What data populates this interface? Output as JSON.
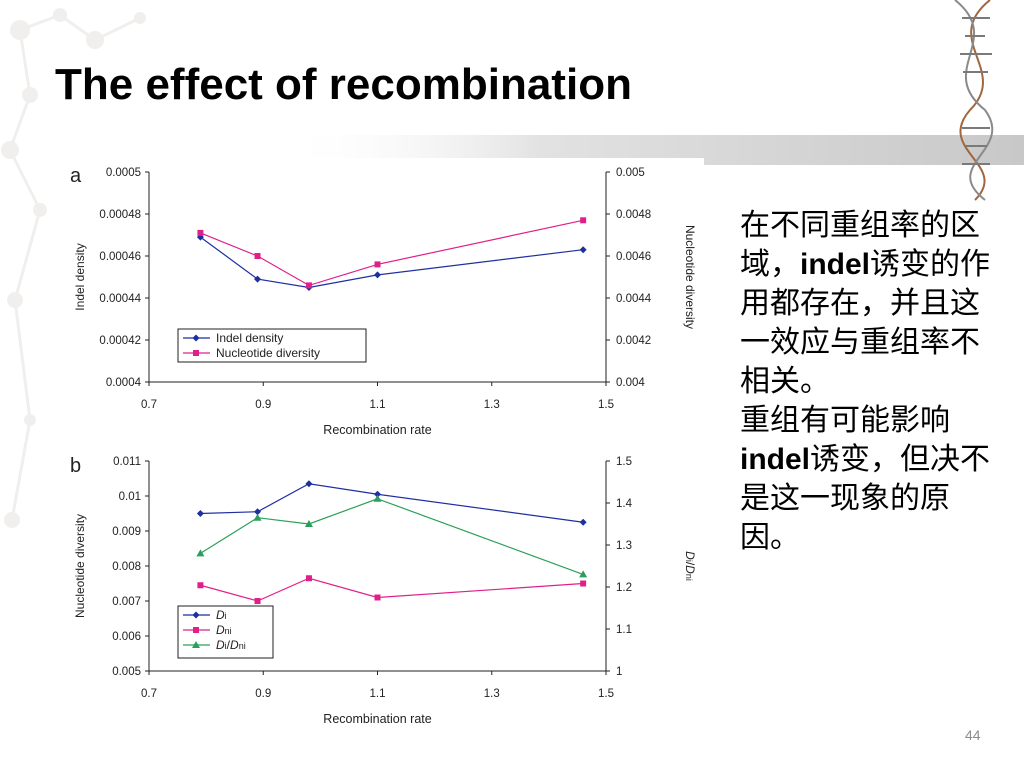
{
  "slide": {
    "title": "The effect of recombination",
    "page_number": "44",
    "caption": {
      "p1a": "在不同重组率的区域，",
      "p1b": "indel",
      "p1c": "诱变的作用都存在，并且这一效应与重组率不相关。",
      "p2a": "重组有可能影响",
      "p2b": "indel",
      "p2c": "诱变，但决不是这一现象的原因。"
    },
    "colors": {
      "series_blue": "#1f2fa0",
      "series_pink": "#e0208a",
      "series_green": "#2aa05a",
      "title_band": "#d8d8d8"
    }
  },
  "chart_data": [
    {
      "type": "line",
      "panel_label": "a",
      "xlabel": "Recombination rate",
      "ylabel_left": "Indel density",
      "ylabel_right": "Nucleotide diversity",
      "xlim": [
        0.7,
        1.5
      ],
      "xticks": [
        "0.7",
        "0.9",
        "1.1",
        "1.3",
        "1.5"
      ],
      "ylim_left": [
        0.0004,
        0.0005
      ],
      "yticks_left": [
        "0.0004",
        "0.00042",
        "0.00044",
        "0.00046",
        "0.00048",
        "0.0005"
      ],
      "ylim_right": [
        0.004,
        0.005
      ],
      "yticks_right": [
        "0.004",
        "0.0042",
        "0.0044",
        "0.0046",
        "0.0048",
        "0.005"
      ],
      "legend_position": "bottom-left",
      "series": [
        {
          "name": "Indel density",
          "axis": "left",
          "color": "#1f2fa0",
          "marker": "diamond",
          "x": [
            0.79,
            0.89,
            0.98,
            1.1,
            1.46
          ],
          "y": [
            0.000469,
            0.000449,
            0.000445,
            0.000451,
            0.000463
          ]
        },
        {
          "name": "Nucleotide diversity",
          "axis": "right",
          "color": "#e0208a",
          "marker": "square",
          "x": [
            0.79,
            0.89,
            0.98,
            1.1,
            1.46
          ],
          "y": [
            0.00471,
            0.0046,
            0.00446,
            0.00456,
            0.00477
          ]
        }
      ]
    },
    {
      "type": "line",
      "panel_label": "b",
      "xlabel": "Recombination rate",
      "ylabel_left": "Nucleotide diversity",
      "ylabel_right": "Di/Dni",
      "xlim": [
        0.7,
        1.5
      ],
      "xticks": [
        "0.7",
        "0.9",
        "1.1",
        "1.3",
        "1.5"
      ],
      "ylim_left": [
        0.005,
        0.011
      ],
      "yticks_left": [
        "0.005",
        "0.006",
        "0.007",
        "0.008",
        "0.009",
        "0.01",
        "0.011"
      ],
      "ylim_right": [
        1.0,
        1.5
      ],
      "yticks_right": [
        "1",
        "1.1",
        "1.2",
        "1.3",
        "1.4",
        "1.5"
      ],
      "legend_position": "bottom-left",
      "series": [
        {
          "name": "Di",
          "axis": "left",
          "color": "#1f2fa0",
          "marker": "diamond",
          "x": [
            0.79,
            0.89,
            0.98,
            1.1,
            1.46
          ],
          "y": [
            0.0095,
            0.00955,
            0.01035,
            0.01005,
            0.00925
          ]
        },
        {
          "name": "Dni",
          "axis": "left",
          "color": "#e0208a",
          "marker": "square",
          "x": [
            0.79,
            0.89,
            0.98,
            1.1,
            1.46
          ],
          "y": [
            0.00745,
            0.007,
            0.00765,
            0.0071,
            0.0075
          ]
        },
        {
          "name": "Di/Dni",
          "axis": "right",
          "color": "#2aa05a",
          "marker": "triangle",
          "x": [
            0.79,
            0.89,
            0.98,
            1.1,
            1.46
          ],
          "y": [
            1.28,
            1.365,
            1.35,
            1.41,
            1.23
          ]
        }
      ]
    }
  ]
}
